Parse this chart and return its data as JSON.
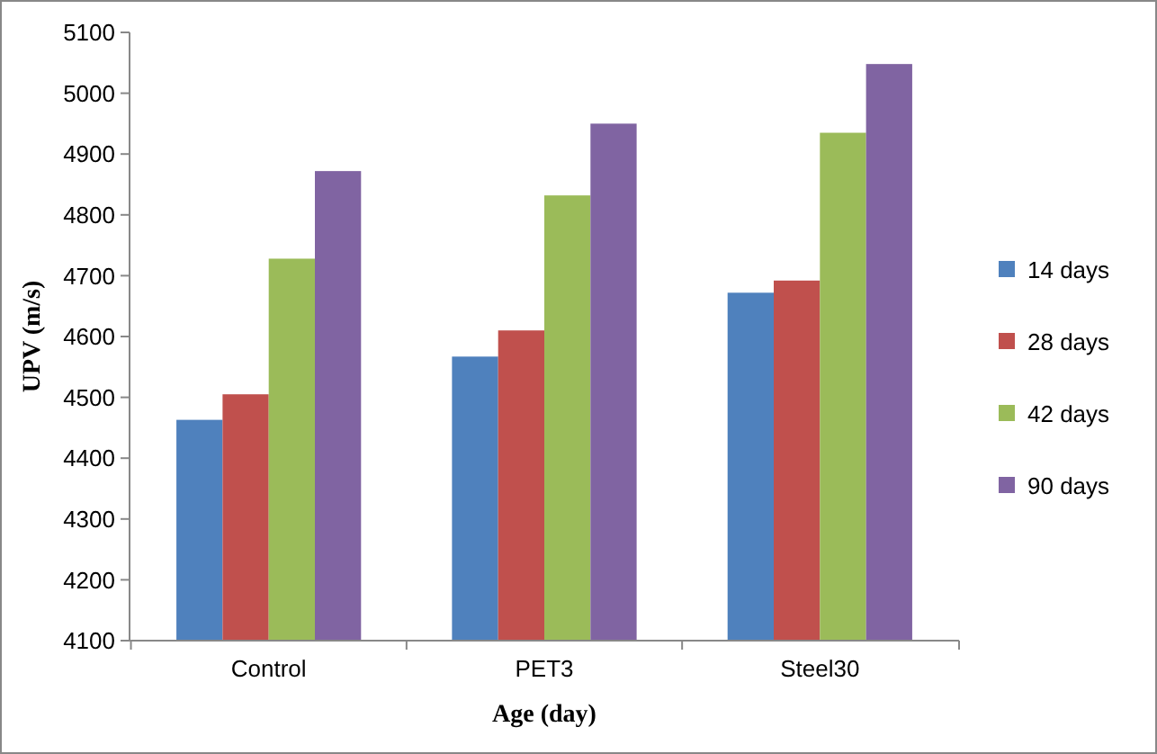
{
  "chart_data": {
    "type": "bar",
    "xlabel": "Age (day)",
    "ylabel": "UPV (m/s)",
    "categories": [
      "Control",
      "PET3",
      "Steel30"
    ],
    "series": [
      {
        "name": "14 days",
        "color": "#4f81bd",
        "values": [
          4463,
          4567,
          4672
        ]
      },
      {
        "name": "28 days",
        "color": "#c0504d",
        "values": [
          4505,
          4610,
          4692
        ]
      },
      {
        "name": "42 days",
        "color": "#9bbb59",
        "values": [
          4728,
          4832,
          4935
        ]
      },
      {
        "name": "90 days",
        "color": "#8064a2",
        "values": [
          4872,
          4950,
          5048
        ]
      }
    ],
    "ylim": [
      4100,
      5100
    ],
    "yticks": [
      4100,
      4200,
      4300,
      4400,
      4500,
      4600,
      4700,
      4800,
      4900,
      5000,
      5100
    ],
    "grid": false,
    "legend": "right"
  }
}
